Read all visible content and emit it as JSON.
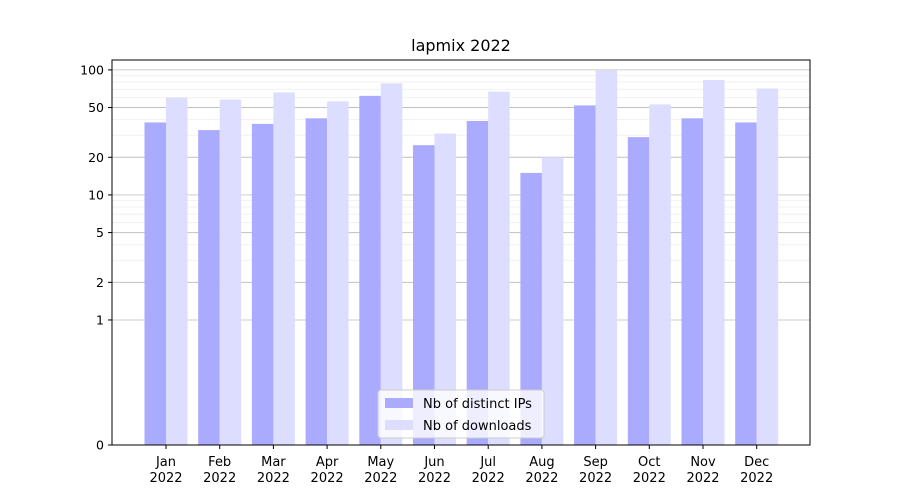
{
  "chart_data": {
    "type": "bar",
    "title": "lapmix 2022",
    "xlabel": "",
    "ylabel": "",
    "y_scale": "symlog",
    "grid": true,
    "legend_placement": "bottom-center",
    "categories": [
      {
        "month": "Jan",
        "year": "2022"
      },
      {
        "month": "Feb",
        "year": "2022"
      },
      {
        "month": "Mar",
        "year": "2022"
      },
      {
        "month": "Apr",
        "year": "2022"
      },
      {
        "month": "May",
        "year": "2022"
      },
      {
        "month": "Jun",
        "year": "2022"
      },
      {
        "month": "Jul",
        "year": "2022"
      },
      {
        "month": "Aug",
        "year": "2022"
      },
      {
        "month": "Sep",
        "year": "2022"
      },
      {
        "month": "Oct",
        "year": "2022"
      },
      {
        "month": "Nov",
        "year": "2022"
      },
      {
        "month": "Dec",
        "year": "2022"
      }
    ],
    "y_ticks": [
      "0",
      "1",
      "2",
      "5",
      "10",
      "20",
      "50",
      "100"
    ],
    "series": [
      {
        "name": "Nb of distinct IPs",
        "color": "#aaaaff",
        "values": [
          38,
          33,
          37,
          41,
          62,
          25,
          39,
          15,
          52,
          29,
          41,
          38
        ]
      },
      {
        "name": "Nb of downloads",
        "color": "#ddddff",
        "values": [
          60,
          58,
          66,
          56,
          78,
          31,
          67,
          20,
          99,
          53,
          83,
          71
        ]
      }
    ]
  }
}
